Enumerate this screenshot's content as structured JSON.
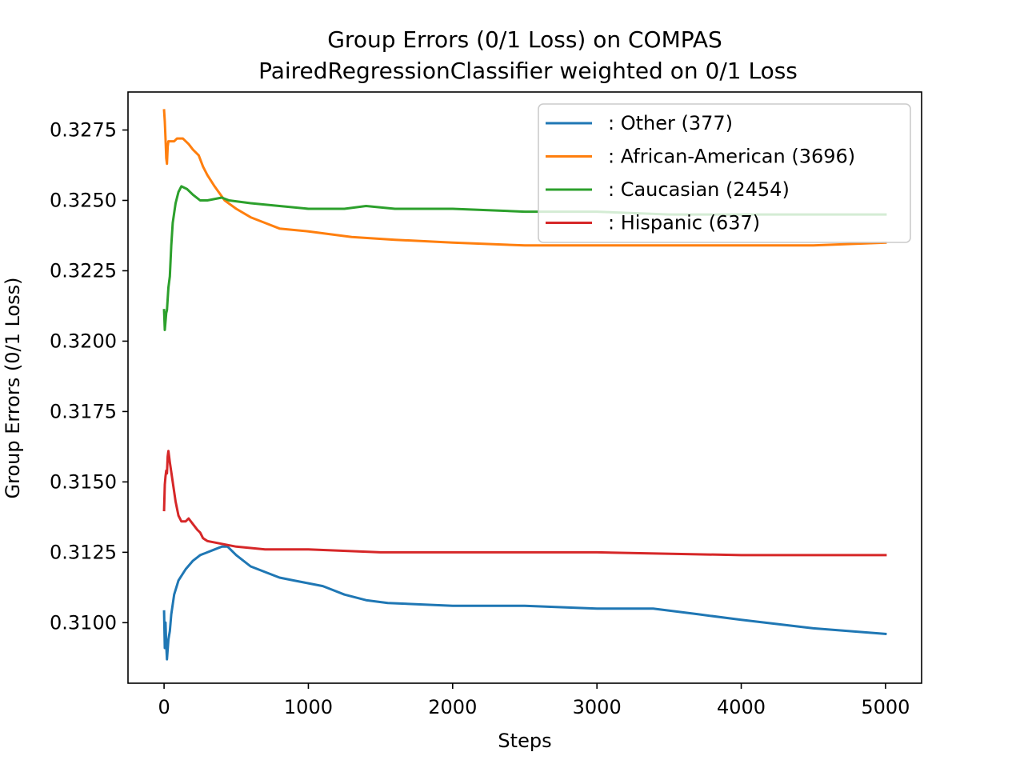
{
  "chart_data": {
    "type": "line",
    "title": "Group Errors (0/1 Loss) on COMPAS",
    "subtitle": "PairedRegressionClassifier weighted on 0/1 Loss",
    "xlabel": "Steps",
    "ylabel": "Group Errors (0/1 Loss)",
    "xlim": [
      -250,
      5250
    ],
    "ylim": [
      0.30785,
      0.32885
    ],
    "xticks": [
      0,
      1000,
      2000,
      3000,
      4000,
      5000
    ],
    "xtick_labels": [
      "0",
      "1000",
      "2000",
      "3000",
      "4000",
      "5000"
    ],
    "yticks": [
      0.31,
      0.3125,
      0.315,
      0.3175,
      0.32,
      0.3225,
      0.325,
      0.3275
    ],
    "ytick_labels": [
      "0.3100",
      "0.3125",
      "0.3150",
      "0.3175",
      "0.3200",
      "0.3225",
      "0.3250",
      "0.3275"
    ],
    "grid": false,
    "legend_position": "top-right",
    "series": [
      {
        "name": ": Other  (377)",
        "color": "#1f77b4",
        "points": [
          [
            0,
            0.3104
          ],
          [
            5,
            0.3091
          ],
          [
            10,
            0.31
          ],
          [
            15,
            0.3092
          ],
          [
            20,
            0.3087
          ],
          [
            30,
            0.3094
          ],
          [
            40,
            0.3097
          ],
          [
            50,
            0.3103
          ],
          [
            70,
            0.311
          ],
          [
            100,
            0.3115
          ],
          [
            150,
            0.3119
          ],
          [
            200,
            0.3122
          ],
          [
            250,
            0.3124
          ],
          [
            300,
            0.3125
          ],
          [
            350,
            0.3126
          ],
          [
            400,
            0.3127
          ],
          [
            440,
            0.3127
          ],
          [
            500,
            0.3124
          ],
          [
            600,
            0.312
          ],
          [
            700,
            0.3118
          ],
          [
            800,
            0.3116
          ],
          [
            900,
            0.3115
          ],
          [
            1000,
            0.3114
          ],
          [
            1100,
            0.3113
          ],
          [
            1150,
            0.3112
          ],
          [
            1250,
            0.311
          ],
          [
            1400,
            0.3108
          ],
          [
            1550,
            0.3107
          ],
          [
            2000,
            0.3106
          ],
          [
            2500,
            0.3106
          ],
          [
            3000,
            0.3105
          ],
          [
            3390,
            0.3105
          ],
          [
            3700,
            0.3103
          ],
          [
            4000,
            0.3101
          ],
          [
            4500,
            0.3098
          ],
          [
            5000,
            0.3096
          ]
        ]
      },
      {
        "name": ": African-American  (3696)",
        "color": "#ff7f0e",
        "points": [
          [
            0,
            0.3282
          ],
          [
            5,
            0.3278
          ],
          [
            10,
            0.3272
          ],
          [
            15,
            0.3265
          ],
          [
            20,
            0.3263
          ],
          [
            25,
            0.3269
          ],
          [
            30,
            0.3271
          ],
          [
            50,
            0.3271
          ],
          [
            70,
            0.3271
          ],
          [
            90,
            0.3272
          ],
          [
            130,
            0.3272
          ],
          [
            170,
            0.327
          ],
          [
            200,
            0.3268
          ],
          [
            240,
            0.3266
          ],
          [
            270,
            0.3262
          ],
          [
            300,
            0.3259
          ],
          [
            350,
            0.3255
          ],
          [
            420,
            0.325
          ],
          [
            500,
            0.3247
          ],
          [
            600,
            0.3244
          ],
          [
            700,
            0.3242
          ],
          [
            800,
            0.324
          ],
          [
            1000,
            0.3239
          ],
          [
            1150,
            0.3238
          ],
          [
            1300,
            0.3237
          ],
          [
            1600,
            0.3236
          ],
          [
            2000,
            0.3235
          ],
          [
            2500,
            0.3234
          ],
          [
            3000,
            0.3234
          ],
          [
            3500,
            0.3234
          ],
          [
            4000,
            0.3234
          ],
          [
            4500,
            0.3234
          ],
          [
            5000,
            0.3235
          ]
        ]
      },
      {
        "name": ": Caucasian  (2454)",
        "color": "#2ca02c",
        "points": [
          [
            0,
            0.3211
          ],
          [
            5,
            0.3204
          ],
          [
            10,
            0.3207
          ],
          [
            15,
            0.321
          ],
          [
            20,
            0.3211
          ],
          [
            30,
            0.3219
          ],
          [
            40,
            0.3223
          ],
          [
            50,
            0.3234
          ],
          [
            60,
            0.3242
          ],
          [
            80,
            0.3249
          ],
          [
            100,
            0.3253
          ],
          [
            120,
            0.3255
          ],
          [
            160,
            0.3254
          ],
          [
            200,
            0.3252
          ],
          [
            250,
            0.325
          ],
          [
            300,
            0.325
          ],
          [
            400,
            0.3251
          ],
          [
            450,
            0.325
          ],
          [
            600,
            0.3249
          ],
          [
            800,
            0.3248
          ],
          [
            1000,
            0.3247
          ],
          [
            1150,
            0.3247
          ],
          [
            1250,
            0.3247
          ],
          [
            1400,
            0.3248
          ],
          [
            1600,
            0.3247
          ],
          [
            2000,
            0.3247
          ],
          [
            2500,
            0.3246
          ],
          [
            3000,
            0.3246
          ],
          [
            3500,
            0.3245
          ],
          [
            4000,
            0.3245
          ],
          [
            4500,
            0.3245
          ],
          [
            5000,
            0.3245
          ]
        ]
      },
      {
        "name": ": Hispanic  (637)",
        "color": "#d62728",
        "points": [
          [
            0,
            0.314
          ],
          [
            5,
            0.3149
          ],
          [
            10,
            0.3152
          ],
          [
            15,
            0.3154
          ],
          [
            20,
            0.3153
          ],
          [
            25,
            0.3159
          ],
          [
            30,
            0.3161
          ],
          [
            40,
            0.3157
          ],
          [
            60,
            0.315
          ],
          [
            80,
            0.3143
          ],
          [
            100,
            0.3138
          ],
          [
            120,
            0.3136
          ],
          [
            150,
            0.3136
          ],
          [
            170,
            0.3137
          ],
          [
            200,
            0.3135
          ],
          [
            230,
            0.3133
          ],
          [
            250,
            0.3132
          ],
          [
            270,
            0.313
          ],
          [
            300,
            0.3129
          ],
          [
            400,
            0.3128
          ],
          [
            500,
            0.3127
          ],
          [
            700,
            0.3126
          ],
          [
            1000,
            0.3126
          ],
          [
            1500,
            0.3125
          ],
          [
            2000,
            0.3125
          ],
          [
            3000,
            0.3125
          ],
          [
            4000,
            0.3124
          ],
          [
            4500,
            0.3124
          ],
          [
            5000,
            0.3124
          ]
        ]
      }
    ]
  }
}
